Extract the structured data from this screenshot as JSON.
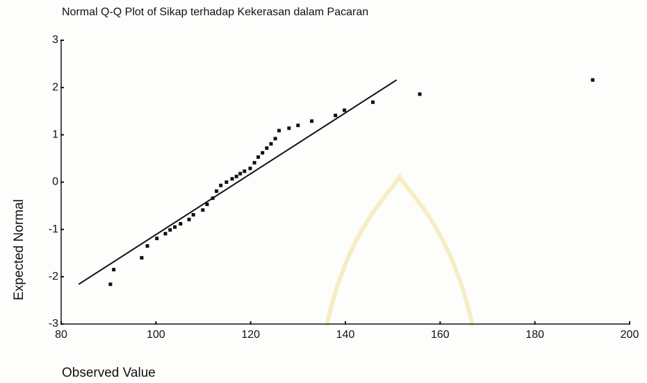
{
  "chart_data": {
    "type": "scatter",
    "title": "Normal Q-Q Plot of Sikap terhadap Kekerasan dalam Pacaran",
    "x_label": "Observed Value",
    "y_label": "Expected Normal",
    "xlim": [
      80,
      200
    ],
    "ylim": [
      -3,
      3
    ],
    "xticks": [
      80,
      100,
      120,
      140,
      160,
      180,
      200
    ],
    "yticks": [
      -3,
      -2,
      -1,
      0,
      1,
      2,
      3
    ],
    "color": "#111111",
    "series": [
      {
        "x": [
          90.4,
          91.1,
          97.0,
          98.2,
          100.2,
          102.0,
          103.0,
          104.0,
          105.2,
          107.0,
          107.9,
          109.9,
          110.8,
          112.0,
          112.8,
          113.7,
          114.9,
          116.1,
          117.0,
          117.8,
          118.7,
          119.9,
          120.8,
          121.6,
          122.5,
          123.4,
          124.3,
          125.2,
          126.0,
          128.1,
          130.0,
          132.9,
          137.9,
          139.8,
          145.8,
          155.7,
          192.2
        ],
        "values": [
          -2.16,
          -1.85,
          -1.6,
          -1.35,
          -1.19,
          -1.09,
          -1.01,
          -0.95,
          -0.88,
          -0.79,
          -0.69,
          -0.59,
          -0.47,
          -0.34,
          -0.19,
          -0.07,
          0.0,
          0.07,
          0.12,
          0.18,
          0.23,
          0.29,
          0.41,
          0.53,
          0.62,
          0.72,
          0.81,
          0.92,
          1.09,
          1.14,
          1.2,
          1.29,
          1.41,
          1.52,
          1.69,
          1.86,
          2.16
        ]
      }
    ],
    "reference_line": {
      "x": [
        83.7,
        150.8
      ],
      "values": [
        -2.16,
        2.16
      ]
    }
  }
}
